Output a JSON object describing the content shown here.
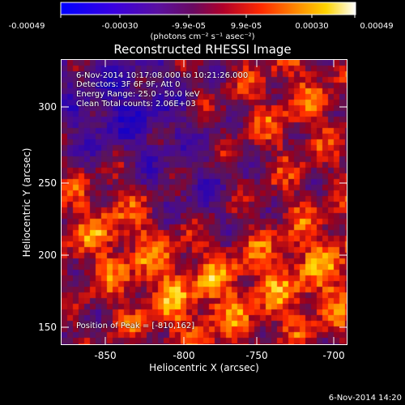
{
  "chart_data": {
    "type": "heatmap",
    "title": "Reconstructed RHESSI Image",
    "xlabel": "Heliocentric X (arcsec)",
    "ylabel": "Heliocentric Y (arcsec)",
    "xlim": [
      -880,
      -693
    ],
    "ylim": [
      140,
      326
    ],
    "xticks": [
      -850,
      -800,
      -750,
      -700
    ],
    "yticks": [
      150,
      200,
      250,
      300
    ],
    "colorbar": {
      "ticks": [
        "-0.00049",
        "-0.00030",
        "-9.9e-05",
        "9.9e-05",
        "0.00030",
        "0.00049"
      ],
      "values": [
        -0.00049,
        -0.0003,
        -9.9e-05,
        9.9e-05,
        0.0003,
        0.00049
      ],
      "range": [
        -0.00049,
        0.00049
      ],
      "units": "(photons cm⁻² s⁻¹ asec⁻²)",
      "colormap": "blue-purple-red-orange-yellow-white"
    },
    "annotations": {
      "time_range": "6-Nov-2014 10:17:08.000 to 10:21:26.000",
      "detectors": "Detectors: 3F 6F 9F, Att 0",
      "energy": "Energy Range: 25.0 - 50.0 keV",
      "method": "Clean     Total counts: 2.06E+03",
      "peak": "Position of Peak = [-810,162]"
    },
    "peak_position": [
      -810,
      162
    ]
  },
  "footer_timestamp": "6-Nov-2014 14:20"
}
